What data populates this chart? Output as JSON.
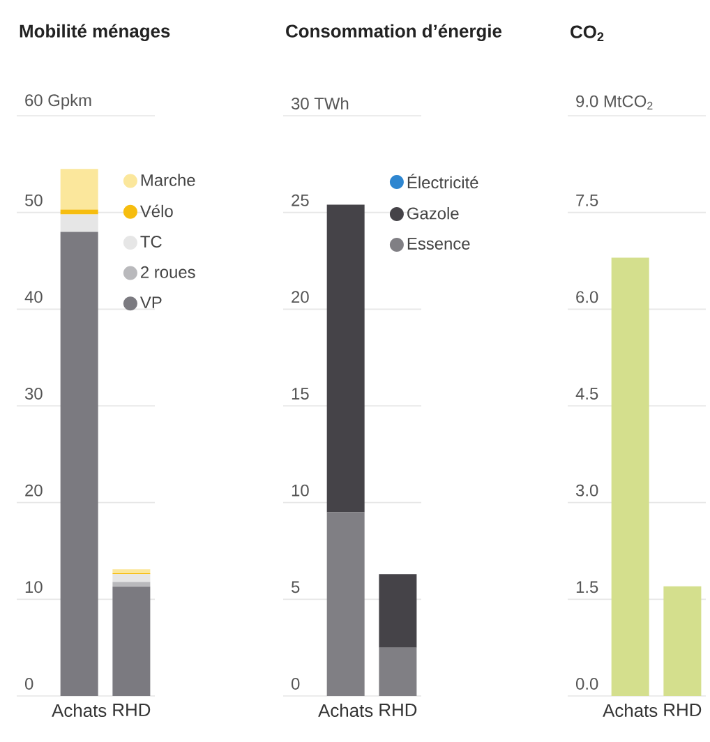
{
  "chart_data": [
    {
      "type": "bar",
      "stacked": true,
      "title": "Mobilité ménages",
      "categories": [
        "Achats",
        "RHD"
      ],
      "series": [
        {
          "name": "VP",
          "color": "#7b7a80",
          "values": [
            48.0,
            11.3
          ]
        },
        {
          "name": "2 roues",
          "color": "#b9b9bc",
          "values": [
            0,
            0.5
          ]
        },
        {
          "name": "TC",
          "color": "#e6e6e6",
          "values": [
            1.8,
            0.8
          ]
        },
        {
          "name": "Vélo",
          "color": "#f6bd0f",
          "values": [
            0.5,
            0.1
          ]
        },
        {
          "name": "Marche",
          "color": "#fbe79c",
          "values": [
            4.2,
            0.4
          ]
        }
      ],
      "ylim": [
        0,
        60
      ],
      "yticks": [
        0,
        10,
        20,
        30,
        40,
        50,
        {
          "value": 60,
          "label": "60 Gpkm"
        }
      ],
      "grid": "y",
      "legend": "top right"
    },
    {
      "type": "bar",
      "stacked": true,
      "title": "Consommation d’énergie",
      "categories": [
        "Achats",
        "RHD"
      ],
      "series": [
        {
          "name": "Essence",
          "color": "#807f84",
          "values": [
            9.5,
            2.5
          ]
        },
        {
          "name": "Gazole",
          "color": "#454348",
          "values": [
            15.9,
            3.8
          ]
        },
        {
          "name": "Électricité",
          "color": "#2e86d0",
          "values": [
            0,
            0
          ]
        }
      ],
      "ylim": [
        0,
        30
      ],
      "yticks": [
        0,
        5,
        10,
        15,
        20,
        25,
        {
          "value": 30,
          "label": "30 TWh"
        }
      ],
      "grid": "y",
      "legend": "top right"
    },
    {
      "type": "bar",
      "title": "CO$_{2}$",
      "categories": [
        "Achats",
        "RHD"
      ],
      "values": [
        6.8,
        1.7
      ],
      "color": "#d4df8d",
      "ylim": [
        0,
        9
      ],
      "yticks": [
        {
          "value": 0,
          "label": "0.0"
        },
        1.5,
        {
          "value": 3,
          "label": "3.0"
        },
        4.5,
        {
          "value": 6,
          "label": "6.0"
        },
        7.5,
        {
          "value": 9,
          "label": "9.0 MtCO$_{2}$"
        }
      ],
      "grid": "y"
    }
  ]
}
